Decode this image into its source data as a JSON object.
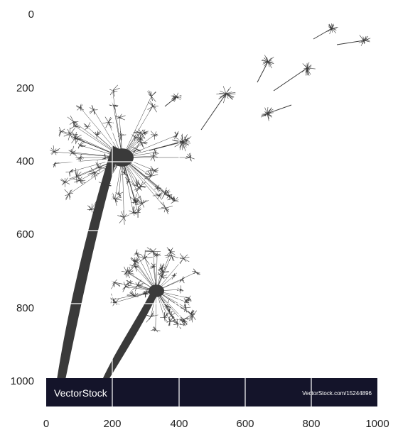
{
  "axes": {
    "y_ticks": [
      "0",
      "200",
      "400",
      "600",
      "800",
      "1000"
    ],
    "x_ticks": [
      "0",
      "200",
      "400",
      "600",
      "800",
      "1000"
    ],
    "xlim": [
      0,
      1000
    ],
    "ylim": [
      1000,
      0
    ],
    "grid": true
  },
  "image": {
    "subject": "dandelion silhouette illustration",
    "colors": {
      "ink": "#3a3a3a",
      "background": "#ffffff",
      "grid": "#ffffff"
    }
  },
  "watermark": {
    "brand": "VectorStock",
    "url": "VectorStock.com/15244896",
    "colors": {
      "bar": "#14142a",
      "text": "#ffffff"
    }
  }
}
